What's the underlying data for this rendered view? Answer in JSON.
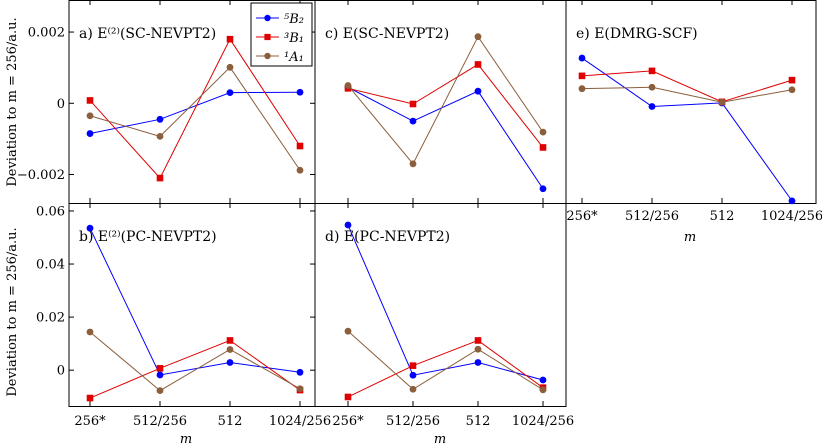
{
  "figure": {
    "ylabel_top": "Deviation to m = 256/a.u.",
    "ylabel_bottom": "Deviation to m = 256/a.u.",
    "xlabel": "m"
  },
  "legend": {
    "placement": "inside panel a, top-right",
    "entries": [
      {
        "label": "⁵B₂",
        "color": "#0000ff",
        "marker": "circle"
      },
      {
        "label": "³B₁",
        "color": "#e00000",
        "marker": "square"
      },
      {
        "label": "¹A₁",
        "color": "#8b5e3c",
        "marker": "circle"
      }
    ]
  },
  "chart_data": [
    {
      "id": "a",
      "type": "line",
      "title": "a) E⁽²⁾(SC-NEVPT2)",
      "categories": [
        "256*",
        "512/256",
        "512",
        "1024/256"
      ],
      "ylim": [
        -0.0028,
        0.0029
      ],
      "yticks": [
        {
          "value": 0.002,
          "label": "0.002"
        },
        {
          "value": 0,
          "label": "0"
        },
        {
          "value": -0.002,
          "label": "−0.002"
        }
      ],
      "series": [
        {
          "name": "⁵B₂",
          "color": "#0000ff",
          "marker": "circle",
          "values": [
            -0.00085,
            -0.00045,
            0.0003,
            0.00031
          ]
        },
        {
          "name": "³B₁",
          "color": "#e00000",
          "marker": "square",
          "values": [
            8e-05,
            -0.0021,
            0.0018,
            -0.0012
          ]
        },
        {
          "name": "¹A₁",
          "color": "#8b5e3c",
          "marker": "circle",
          "values": [
            -0.00035,
            -0.00093,
            0.00101,
            -0.00188
          ]
        }
      ]
    },
    {
      "id": "c",
      "type": "line",
      "title": "c) E(SC-NEVPT2)",
      "categories": [
        "256*",
        "512/256",
        "512",
        "1024/256"
      ],
      "ylim": [
        -0.0028,
        0.0029
      ],
      "yticks": [],
      "series": [
        {
          "name": "⁵B₂",
          "color": "#0000ff",
          "marker": "circle",
          "values": [
            0.00045,
            -0.0005,
            0.00034,
            -0.0024
          ]
        },
        {
          "name": "³B₁",
          "color": "#e00000",
          "marker": "square",
          "values": [
            0.00042,
            -2e-05,
            0.00109,
            -0.00124
          ]
        },
        {
          "name": "¹A₁",
          "color": "#8b5e3c",
          "marker": "circle",
          "values": [
            0.0005,
            -0.0017,
            0.00187,
            -0.00081
          ]
        }
      ]
    },
    {
      "id": "e",
      "type": "line",
      "title": "e) E(DMRG-SCF)",
      "categories": [
        "256*",
        "512/256",
        "512",
        "1024/256"
      ],
      "ylim": [
        -0.0028,
        0.0029
      ],
      "yticks": [],
      "series": [
        {
          "name": "⁵B₂",
          "color": "#0000ff",
          "marker": "circle",
          "values": [
            0.00127,
            -9e-05,
            1e-05,
            -0.00274
          ]
        },
        {
          "name": "³B₁",
          "color": "#e00000",
          "marker": "square",
          "values": [
            0.00077,
            0.00091,
            4e-05,
            0.00065
          ]
        },
        {
          "name": "¹A₁",
          "color": "#8b5e3c",
          "marker": "circle",
          "values": [
            0.00041,
            0.00045,
            3e-05,
            0.00038
          ]
        }
      ]
    },
    {
      "id": "b",
      "type": "line",
      "title": "b) E⁽²⁾(PC-NEVPT2)",
      "categories": [
        "256*",
        "512/256",
        "512",
        "1024/256"
      ],
      "ylim": [
        -0.0135,
        0.063
      ],
      "yticks": [
        {
          "value": 0.06,
          "label": "0.06"
        },
        {
          "value": 0.04,
          "label": "0.04"
        },
        {
          "value": 0.02,
          "label": "0.02"
        },
        {
          "value": 0,
          "label": "0"
        }
      ],
      "series": [
        {
          "name": "⁵B₂",
          "color": "#0000ff",
          "marker": "circle",
          "values": [
            0.0535,
            -0.0018,
            0.0029,
            -0.0008
          ]
        },
        {
          "name": "³B₁",
          "color": "#e00000",
          "marker": "square",
          "values": [
            -0.0105,
            0.0007,
            0.0112,
            -0.0075
          ]
        },
        {
          "name": "¹A₁",
          "color": "#8b5e3c",
          "marker": "circle",
          "values": [
            0.0144,
            -0.0077,
            0.0078,
            -0.007
          ]
        }
      ]
    },
    {
      "id": "d",
      "type": "line",
      "title": "d) E(PC-NEVPT2)",
      "categories": [
        "256*",
        "512/256",
        "512",
        "1024/256"
      ],
      "ylim": [
        -0.0135,
        0.063
      ],
      "yticks": [],
      "series": [
        {
          "name": "⁵B₂",
          "color": "#0000ff",
          "marker": "circle",
          "values": [
            0.0547,
            -0.0019,
            0.0029,
            -0.0037
          ]
        },
        {
          "name": "³B₁",
          "color": "#e00000",
          "marker": "square",
          "values": [
            -0.0101,
            0.0017,
            0.0112,
            -0.0066
          ]
        },
        {
          "name": "¹A₁",
          "color": "#8b5e3c",
          "marker": "circle",
          "values": [
            0.0147,
            -0.0072,
            0.0079,
            -0.0074
          ]
        }
      ]
    }
  ]
}
